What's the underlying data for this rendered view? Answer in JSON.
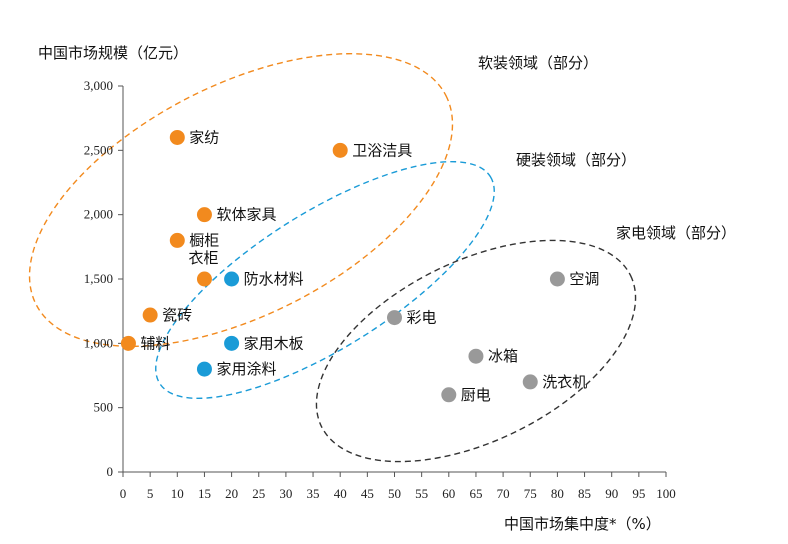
{
  "chart_data": {
    "type": "scatter",
    "ylabel": "中国市场规模（亿元）",
    "xlabel": "中国市场集中度*（%）",
    "xlim": [
      0,
      100
    ],
    "ylim": [
      0,
      3000
    ],
    "x_ticks": [
      0,
      5,
      10,
      15,
      20,
      25,
      30,
      35,
      40,
      45,
      50,
      55,
      60,
      65,
      70,
      75,
      80,
      85,
      90,
      95,
      100
    ],
    "y_ticks": [
      0,
      500,
      1000,
      1500,
      2000,
      2500,
      3000
    ],
    "y_tick_labels": [
      "0",
      "500",
      "1,000",
      "1,500",
      "2,000",
      "2,500",
      "3,000"
    ],
    "groups": [
      {
        "name": "软装领域（部分）",
        "color": "#F28A1E",
        "ellipse_color": "#F28A1E"
      },
      {
        "name": "硬装领域（部分）",
        "color": "#1A9BD7",
        "ellipse_color": "#1A9BD7"
      },
      {
        "name": "家电领域（部分）",
        "color": "#999999",
        "ellipse_color": "#333333"
      }
    ],
    "points": [
      {
        "label": "家纺",
        "x": 10,
        "y": 2600,
        "group": 0
      },
      {
        "label": "卫浴洁具",
        "x": 40,
        "y": 2500,
        "group": 0
      },
      {
        "label": "软体家具",
        "x": 15,
        "y": 2000,
        "group": 0
      },
      {
        "label": "橱柜",
        "x": 10,
        "y": 1800,
        "group": 0
      },
      {
        "label": "衣柜",
        "x": 15,
        "y": 1500,
        "group": 0
      },
      {
        "label": "瓷砖",
        "x": 5,
        "y": 1220,
        "group": 0
      },
      {
        "label": "辅料",
        "x": 1,
        "y": 1000,
        "group": 0
      },
      {
        "label": "防水材料",
        "x": 20,
        "y": 1500,
        "group": 1
      },
      {
        "label": "家用木板",
        "x": 20,
        "y": 1000,
        "group": 1
      },
      {
        "label": "家用涂料",
        "x": 15,
        "y": 800,
        "group": 1
      },
      {
        "label": "空调",
        "x": 80,
        "y": 1500,
        "group": 2
      },
      {
        "label": "彩电",
        "x": 50,
        "y": 1200,
        "group": 2
      },
      {
        "label": "冰箱",
        "x": 65,
        "y": 900,
        "group": 2
      },
      {
        "label": "洗衣机",
        "x": 75,
        "y": 700,
        "group": 2
      },
      {
        "label": "厨电",
        "x": 60,
        "y": 600,
        "group": 2
      }
    ]
  }
}
